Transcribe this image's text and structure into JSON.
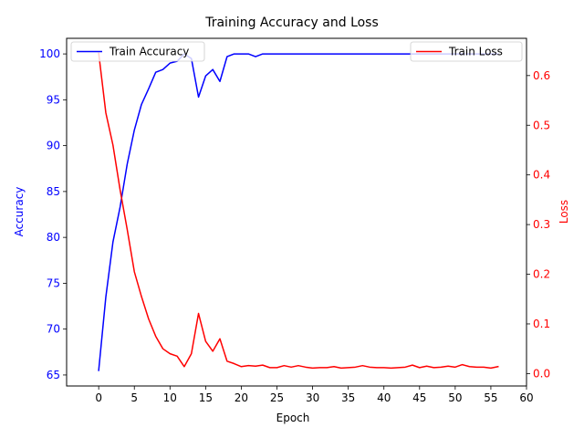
{
  "chart_data": {
    "type": "line",
    "title": "Training Accuracy and Loss",
    "xlabel": "Epoch",
    "ylabel_left": "Accuracy",
    "ylabel_right": "Loss",
    "xlim": [
      -4.5,
      60
    ],
    "ylim_left": [
      63.8,
      101.7
    ],
    "ylim_right": [
      -0.025,
      0.675
    ],
    "x_ticks": [
      0,
      5,
      10,
      15,
      20,
      25,
      30,
      35,
      40,
      45,
      50,
      55,
      60
    ],
    "y_left_ticks": [
      65,
      70,
      75,
      80,
      85,
      90,
      95,
      100
    ],
    "y_right_ticks": [
      0.0,
      0.1,
      0.2,
      0.3,
      0.4,
      0.5,
      0.6
    ],
    "grid": false,
    "series": [
      {
        "name": "Train Accuracy",
        "axis": "left",
        "color": "#0000ff",
        "legend_position": "upper-left",
        "x": [
          0,
          1,
          2,
          3,
          4,
          5,
          6,
          7,
          8,
          9,
          10,
          11,
          12,
          13,
          14,
          15,
          16,
          17,
          18,
          19,
          20,
          21,
          22,
          23,
          24,
          25,
          26,
          27,
          28,
          29,
          30,
          31,
          32,
          33,
          34,
          35,
          36,
          37,
          38,
          39,
          40,
          41,
          42,
          43,
          44,
          45,
          46,
          47,
          48,
          49,
          50,
          51,
          52,
          53,
          54,
          55,
          56
        ],
        "values": [
          65.5,
          73.5,
          79.5,
          83.3,
          88.0,
          91.7,
          94.5,
          96.2,
          98.0,
          98.3,
          99.0,
          99.2,
          100.0,
          99.5,
          95.3,
          97.6,
          98.3,
          97.0,
          99.7,
          100.0,
          100.0,
          100.0,
          99.7,
          100.0,
          100.0,
          100.0,
          100.0,
          100.0,
          100.0,
          100.0,
          100.0,
          100.0,
          100.0,
          100.0,
          100.0,
          100.0,
          100.0,
          100.0,
          100.0,
          100.0,
          100.0,
          100.0,
          100.0,
          100.0,
          100.0,
          100.0,
          100.0,
          100.0,
          100.0,
          100.0,
          100.0,
          100.0,
          100.0,
          100.0,
          100.0,
          100.0,
          100.0
        ]
      },
      {
        "name": "Train Loss",
        "axis": "right",
        "color": "#ff0000",
        "legend_position": "upper-right",
        "x": [
          0,
          1,
          2,
          3,
          4,
          5,
          6,
          7,
          8,
          9,
          10,
          11,
          12,
          13,
          14,
          15,
          16,
          17,
          18,
          19,
          20,
          21,
          22,
          23,
          24,
          25,
          26,
          27,
          28,
          29,
          30,
          31,
          32,
          33,
          34,
          35,
          36,
          37,
          38,
          39,
          40,
          41,
          42,
          43,
          44,
          45,
          46,
          47,
          48,
          49,
          50,
          51,
          52,
          53,
          54,
          55,
          56
        ],
        "values": [
          0.645,
          0.525,
          0.46,
          0.37,
          0.29,
          0.205,
          0.155,
          0.11,
          0.075,
          0.05,
          0.04,
          0.035,
          0.014,
          0.04,
          0.121,
          0.065,
          0.045,
          0.07,
          0.025,
          0.02,
          0.014,
          0.016,
          0.015,
          0.017,
          0.012,
          0.012,
          0.016,
          0.013,
          0.016,
          0.013,
          0.011,
          0.012,
          0.012,
          0.014,
          0.011,
          0.012,
          0.013,
          0.016,
          0.013,
          0.012,
          0.012,
          0.011,
          0.012,
          0.013,
          0.017,
          0.012,
          0.015,
          0.012,
          0.013,
          0.015,
          0.013,
          0.018,
          0.014,
          0.013,
          0.013,
          0.011,
          0.014
        ]
      }
    ]
  }
}
